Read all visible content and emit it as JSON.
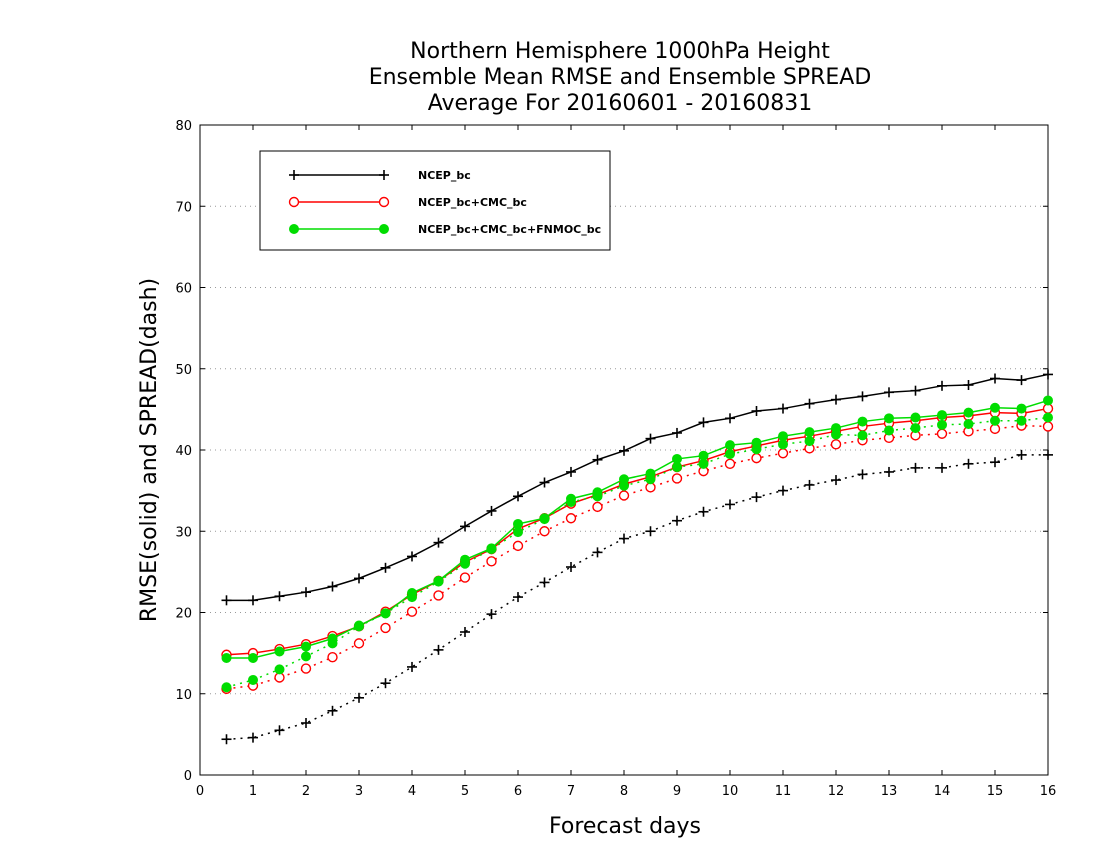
{
  "chart_data": {
    "type": "line",
    "title": [
      "Northern Hemisphere 1000hPa Height",
      "Ensemble Mean RMSE and Ensemble SPREAD",
      "Average For 20160601 - 20160831"
    ],
    "xlabel": "Forecast days",
    "ylabel": "RMSE(solid) and SPREAD(dash)",
    "xlim": [
      0,
      16
    ],
    "ylim": [
      0,
      80
    ],
    "xticks": [
      "0",
      "1",
      "2",
      "3",
      "4",
      "5",
      "6",
      "7",
      "8",
      "9",
      "10",
      "11",
      "12",
      "13",
      "14",
      "15",
      "16"
    ],
    "yticks": [
      "0",
      "10",
      "20",
      "30",
      "40",
      "50",
      "60",
      "70",
      "80"
    ],
    "grid": "horizontal dotted",
    "legend_position": "top-left",
    "x": [
      0.5,
      1,
      1.5,
      2,
      2.5,
      3,
      3.5,
      4,
      4.5,
      5,
      5.5,
      6,
      6.5,
      7,
      7.5,
      8,
      8.5,
      9,
      9.5,
      10,
      10.5,
      11,
      11.5,
      12,
      12.5,
      13,
      13.5,
      14,
      14.5,
      15,
      15.5,
      16
    ],
    "series": [
      {
        "name": "NCEP_bc",
        "color": "#000000",
        "marker": "plus",
        "rmse": [
          21.5,
          21.5,
          22.0,
          22.5,
          23.2,
          24.2,
          25.5,
          26.9,
          28.6,
          30.6,
          32.5,
          34.3,
          36.0,
          37.3,
          38.8,
          39.9,
          41.4,
          42.1,
          43.4,
          43.9,
          44.8,
          45.1,
          45.7,
          46.2,
          46.6,
          47.1,
          47.3,
          47.9,
          48.0,
          48.8,
          48.6,
          49.3
        ],
        "spread": [
          4.4,
          4.6,
          5.5,
          6.4,
          7.9,
          9.5,
          11.3,
          13.3,
          15.4,
          17.6,
          19.8,
          21.9,
          23.7,
          25.6,
          27.4,
          29.1,
          30.0,
          31.3,
          32.4,
          33.3,
          34.2,
          35.0,
          35.7,
          36.3,
          37.0,
          37.3,
          37.8,
          37.8,
          38.3,
          38.5,
          39.4,
          39.4
        ]
      },
      {
        "name": "NCEP_bc+CMC_bc",
        "color": "#ff0000",
        "marker": "open-circle",
        "rmse": [
          14.8,
          15.0,
          15.5,
          16.1,
          17.1,
          18.3,
          20.1,
          22.2,
          23.9,
          26.2,
          27.8,
          30.3,
          31.6,
          33.4,
          34.5,
          35.8,
          36.7,
          37.9,
          38.7,
          39.8,
          40.5,
          41.2,
          41.7,
          42.3,
          42.9,
          43.3,
          43.6,
          44.0,
          44.2,
          44.6,
          44.5,
          45.1
        ],
        "spread": [
          10.6,
          11.0,
          12.0,
          13.1,
          14.5,
          16.2,
          18.1,
          20.1,
          22.1,
          24.3,
          26.3,
          28.2,
          30.0,
          31.6,
          33.0,
          34.4,
          35.4,
          36.5,
          37.4,
          38.3,
          39.0,
          39.6,
          40.2,
          40.7,
          41.2,
          41.5,
          41.8,
          42.0,
          42.3,
          42.6,
          43.0,
          42.9
        ]
      },
      {
        "name": "NCEP_bc+CMC_bc+FNMOC_bc",
        "color": "#00dd00",
        "marker": "filled-circle",
        "rmse": [
          14.4,
          14.4,
          15.2,
          15.8,
          16.8,
          18.4,
          19.9,
          22.4,
          23.9,
          26.5,
          27.9,
          30.9,
          31.6,
          34.0,
          34.8,
          36.4,
          37.1,
          38.9,
          39.3,
          40.6,
          40.9,
          41.7,
          42.2,
          42.7,
          43.5,
          43.9,
          44.0,
          44.3,
          44.6,
          45.2,
          45.1,
          46.1
        ],
        "spread": [
          10.8,
          11.7,
          13.0,
          14.6,
          16.2,
          18.3,
          19.9,
          21.9,
          23.8,
          26.0,
          27.8,
          29.9,
          31.5,
          33.6,
          34.3,
          35.6,
          36.4,
          37.9,
          38.3,
          39.5,
          40.1,
          40.7,
          41.1,
          41.9,
          41.8,
          42.4,
          42.7,
          43.1,
          43.2,
          43.6,
          43.6,
          44.0
        ]
      }
    ]
  }
}
